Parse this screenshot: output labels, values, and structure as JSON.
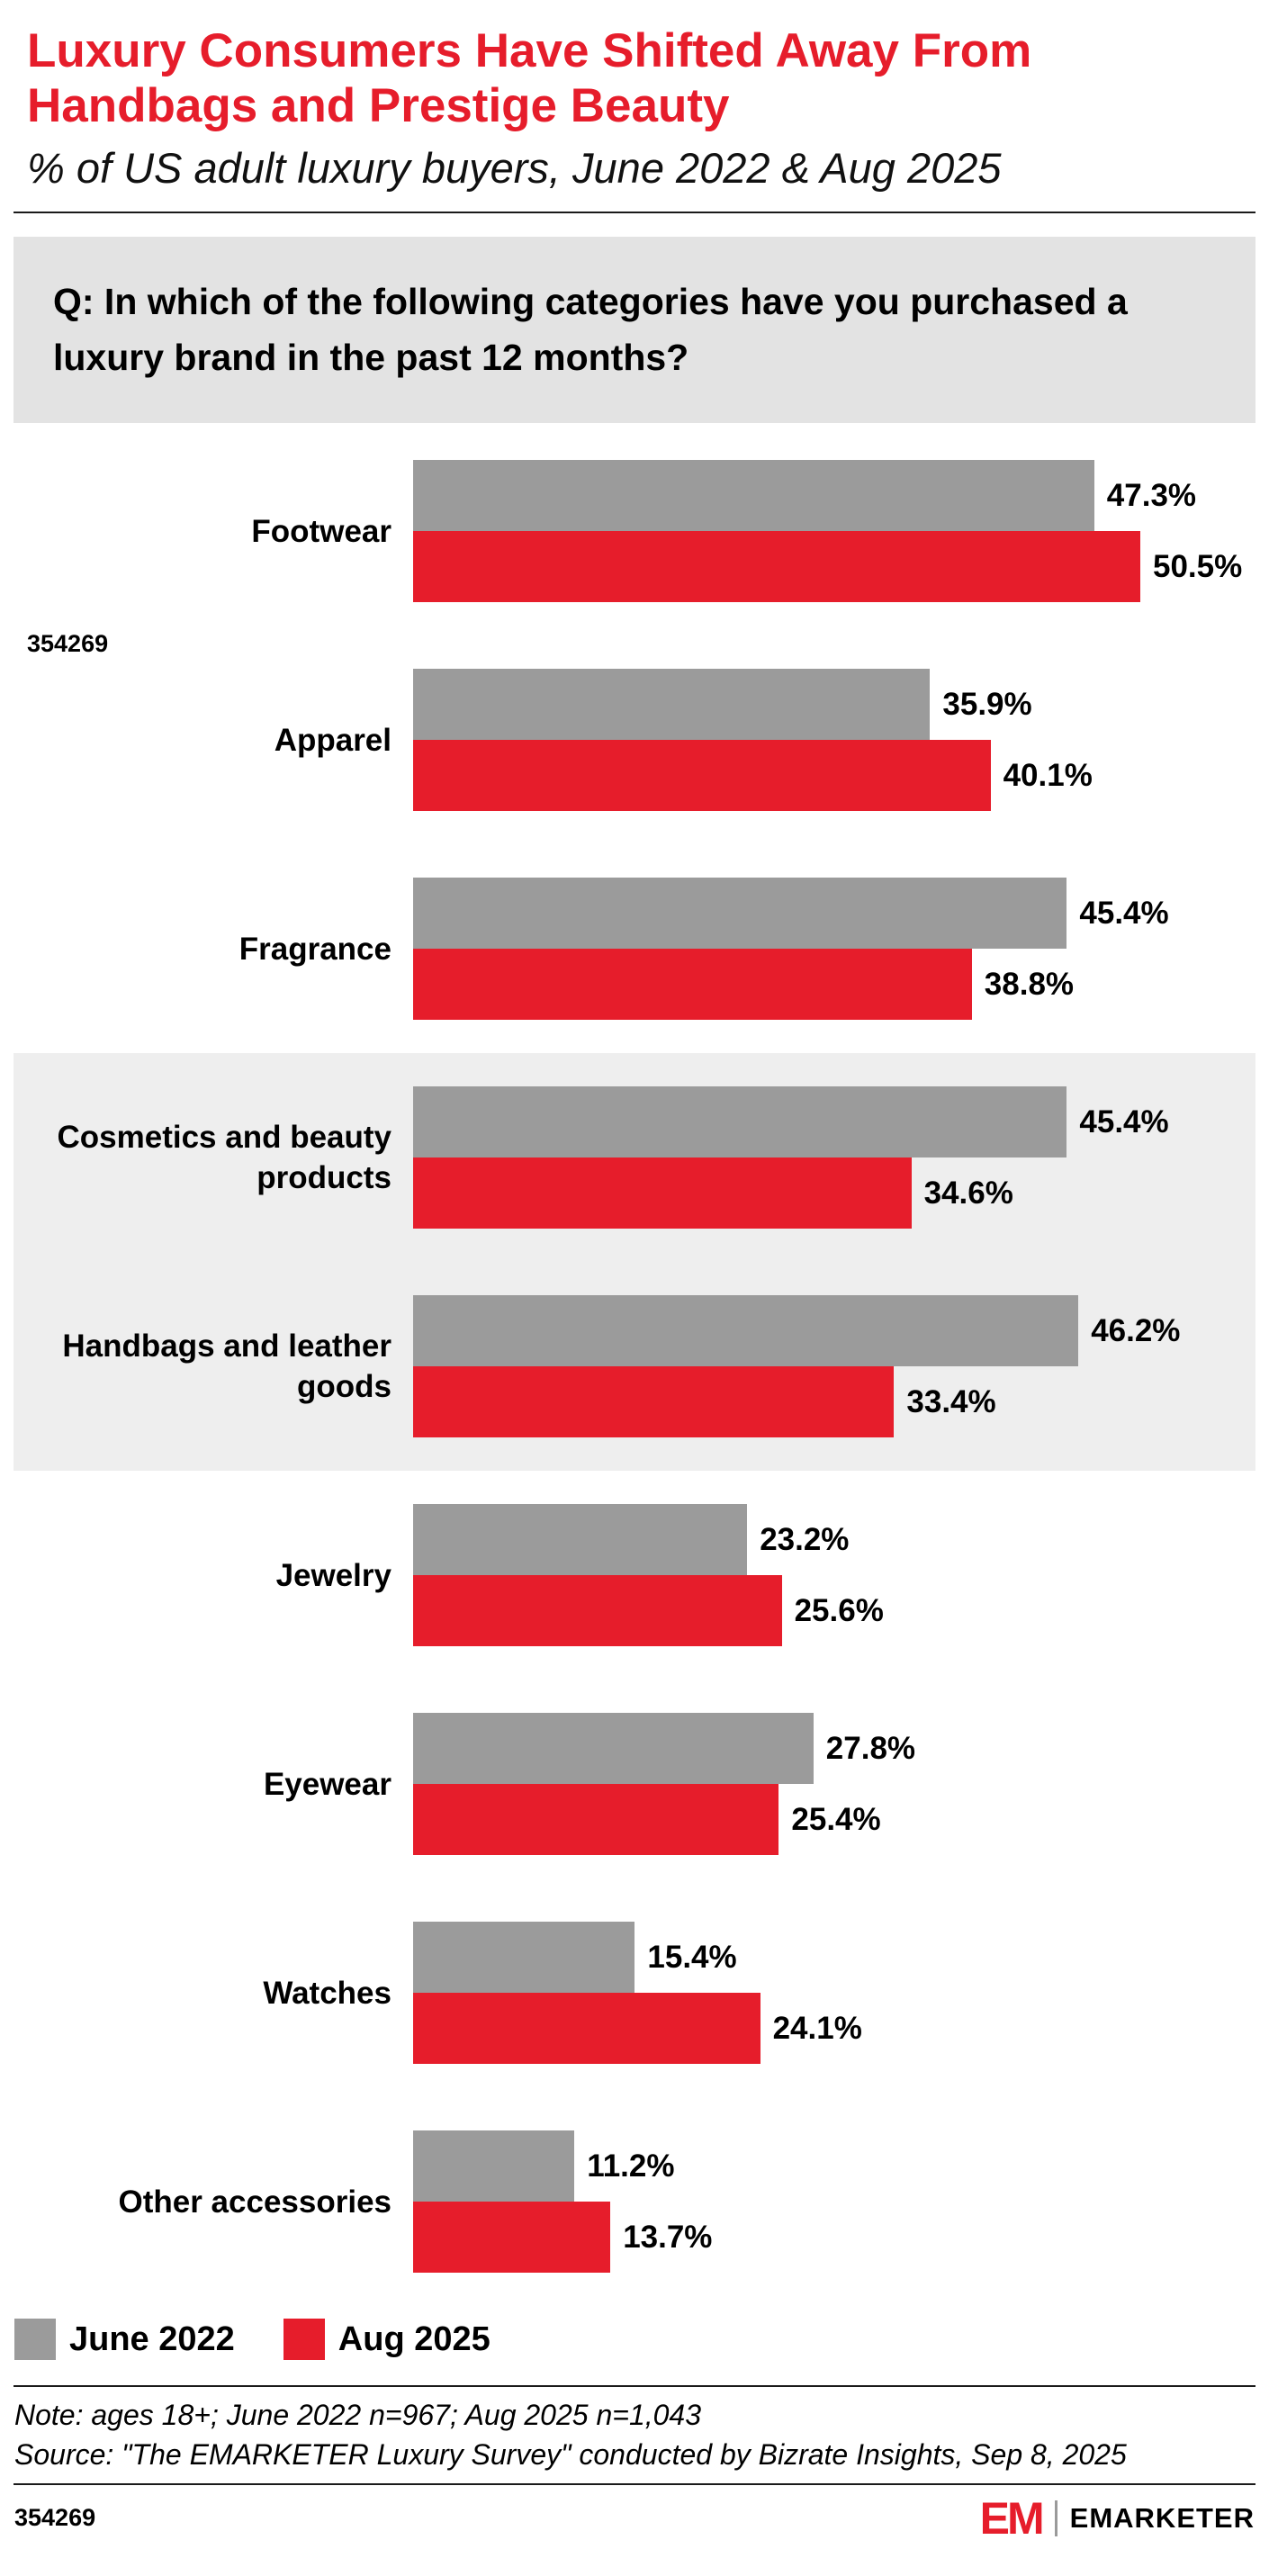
{
  "header": {
    "title": "Luxury Consumers Have Shifted Away From\nHandbags and Prestige Beauty",
    "subtitle": "% of US adult luxury buyers, June 2022 & Aug 2025"
  },
  "question": "Q: In which of the following categories have you purchased a\nluxury brand in the past 12 months?",
  "chart_data": {
    "type": "bar",
    "orientation": "horizontal",
    "title": "Luxury Consumers Have Shifted Away From Handbags and Prestige Beauty",
    "subtitle": "% of US adult luxury buyers, June 2022 & Aug 2025",
    "categories": [
      "Footwear",
      "Apparel",
      "Fragrance",
      "Cosmetics and beauty products",
      "Handbags and leather goods",
      "Jewelry",
      "Eyewear",
      "Watches",
      "Other accessories"
    ],
    "series": [
      {
        "name": "June 2022",
        "color": "#9b9b9b",
        "values": [
          47.3,
          35.9,
          45.4,
          45.4,
          46.2,
          23.2,
          27.8,
          15.4,
          11.2
        ]
      },
      {
        "name": "Aug 2025",
        "color": "#e61d2b",
        "values": [
          50.5,
          40.1,
          38.8,
          34.6,
          33.4,
          25.6,
          25.4,
          24.1,
          13.7
        ]
      }
    ],
    "value_suffix": "%",
    "xlim": [
      0,
      55
    ],
    "grid": false,
    "legend_position": "bottom-left",
    "highlighted_categories": [
      "Cosmetics and beauty products",
      "Handbags and leather goods"
    ]
  },
  "chart_id": "354269",
  "footnote": {
    "note": "Note: ages 18+; June 2022 n=967; Aug 2025 n=1,043",
    "source": "Source: \"The EMARKETER Luxury Survey\" conducted by Bizrate Insights, Sep 8, 2025"
  },
  "footer": {
    "logo_text": "EM",
    "brand": "EMARKETER"
  },
  "colors": {
    "accent_red": "#e61d2b",
    "bar_gray": "#9b9b9b",
    "highlight_band": "#eeeeee",
    "question_bg": "#e3e3e3",
    "rule": "#1a1a1a"
  }
}
